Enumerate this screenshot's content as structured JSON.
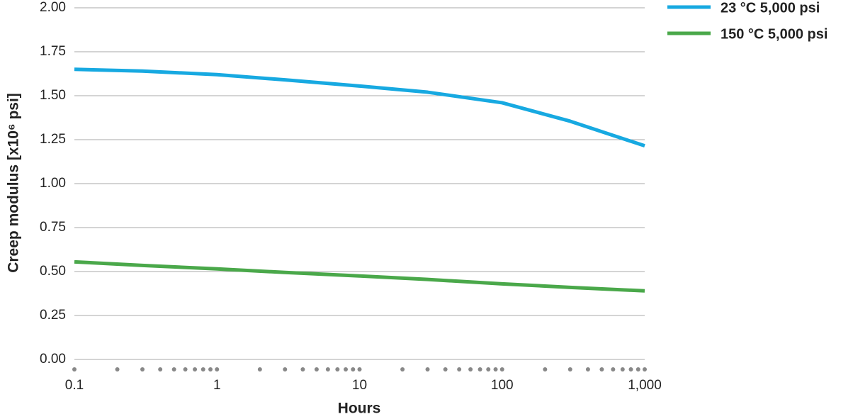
{
  "chart_data": {
    "type": "line",
    "xlabel": "Hours",
    "ylabel": "Creep modulus [x10⁶ psi]",
    "x": [
      0.1,
      0.3,
      1,
      3,
      10,
      30,
      100,
      300,
      1000
    ],
    "series": [
      {
        "name": "23 °C 5,000 psi",
        "color": "#17a9e1",
        "values": [
          1.65,
          1.64,
          1.62,
          1.59,
          1.555,
          1.52,
          1.46,
          1.355,
          1.215
        ]
      },
      {
        "name": "150 °C 5,000 psi",
        "color": "#4aa84a",
        "values": [
          0.555,
          0.535,
          0.515,
          0.495,
          0.475,
          0.455,
          0.43,
          0.41,
          0.39
        ]
      }
    ],
    "xlim": [
      0.1,
      1000
    ],
    "xscale": "log",
    "xticks": [
      0.1,
      1,
      10,
      100,
      {
        "value": 1000,
        "label": "1,000"
      }
    ],
    "xminorticks": [
      0.2,
      0.3,
      0.4,
      0.5,
      0.6,
      0.7,
      0.8,
      0.9,
      2,
      3,
      4,
      5,
      6,
      7,
      8,
      9,
      20,
      30,
      40,
      50,
      60,
      70,
      80,
      90,
      200,
      300,
      400,
      500,
      600,
      700,
      800,
      900
    ],
    "ylim": [
      0,
      2
    ],
    "yticks": [
      {
        "value": 0,
        "label": "0.00"
      },
      {
        "value": 0.25,
        "label": "0.25"
      },
      {
        "value": 0.5,
        "label": "0.50"
      },
      {
        "value": 0.75,
        "label": "0.75"
      },
      {
        "value": 1,
        "label": "1.00"
      },
      {
        "value": 1.25,
        "label": "1.25"
      },
      {
        "value": 1.5,
        "label": "1.50"
      },
      {
        "value": 1.75,
        "label": "1.75"
      },
      {
        "value": 2,
        "label": "2.00"
      }
    ],
    "grid": true,
    "legend": "upper right"
  }
}
